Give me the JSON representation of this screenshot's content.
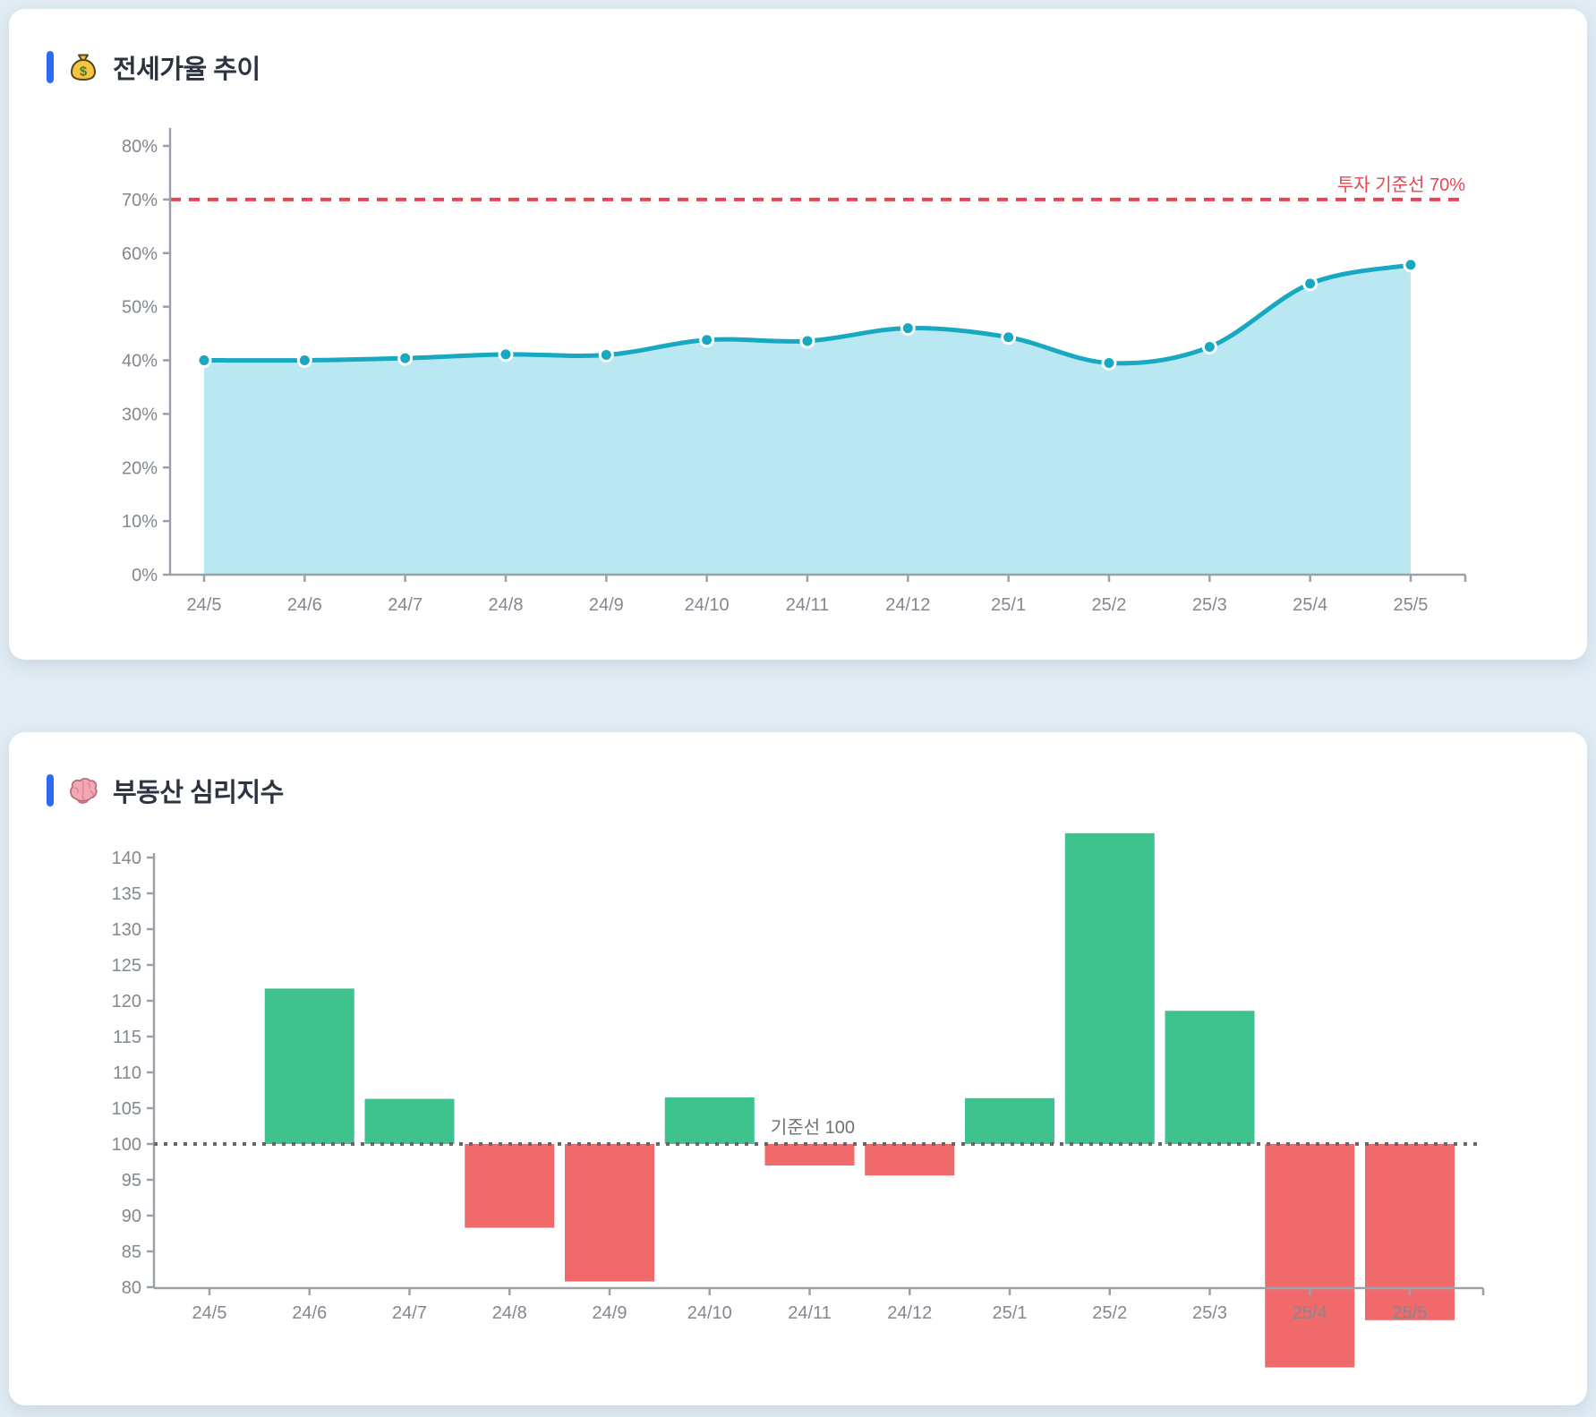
{
  "page": {
    "background_color": "#e1ecf4",
    "card_color": "#ffffff",
    "accent_color": "#2e6bf5"
  },
  "cards": [
    {
      "title": "전세가율 추이",
      "icon": "money-bag-icon"
    },
    {
      "title": "부동산 심리지수",
      "icon": "brain-icon"
    }
  ],
  "chart_data": [
    {
      "type": "area",
      "title": "전세가율 추이",
      "categories": [
        "24/5",
        "24/6",
        "24/7",
        "24/8",
        "24/9",
        "24/10",
        "24/11",
        "24/12",
        "25/1",
        "25/2",
        "25/3",
        "25/4",
        "25/5"
      ],
      "values": [
        40.0,
        40.0,
        40.4,
        41.1,
        41.0,
        43.8,
        43.6,
        46.0,
        44.3,
        39.5,
        42.5,
        54.3,
        57.8
      ],
      "ylim": [
        0,
        80
      ],
      "y_tick_step": 10,
      "y_tick_suffix": "%",
      "grid": false,
      "legend": "none",
      "threshold": {
        "value": 70,
        "label": "투자 기준선 70%",
        "color": "#e64553"
      },
      "line_color": "#17a8c2",
      "fill_color": "#b9e7f2",
      "axis_color": "#9aa1a8",
      "tick_label_color": "#82888f"
    },
    {
      "type": "bar",
      "title": "부동산 심리지수",
      "categories": [
        "24/5",
        "24/6",
        "24/7",
        "24/8",
        "24/9",
        "24/10",
        "24/11",
        "24/12",
        "25/1",
        "25/2",
        "25/3",
        "25/4",
        "25/5"
      ],
      "values": [
        100,
        121.7,
        106.3,
        88.3,
        80.8,
        106.5,
        97.0,
        95.6,
        106.4,
        143.4,
        118.6,
        68.8,
        75.4
      ],
      "ylim": [
        80,
        140
      ],
      "y_tick_step": 5,
      "grid": false,
      "legend": "none",
      "baseline": {
        "value": 100,
        "label": "기준선 100",
        "line_color": "#63676c",
        "label_color": "#6d7277"
      },
      "positive_color": "#3ec28e",
      "negative_color": "#f06a6b",
      "axis_color": "#9aa1a8",
      "tick_label_color": "#82888f",
      "note": "bars are colored green above baseline 100, red below; bars under 80 overflow past the x-axis"
    }
  ]
}
